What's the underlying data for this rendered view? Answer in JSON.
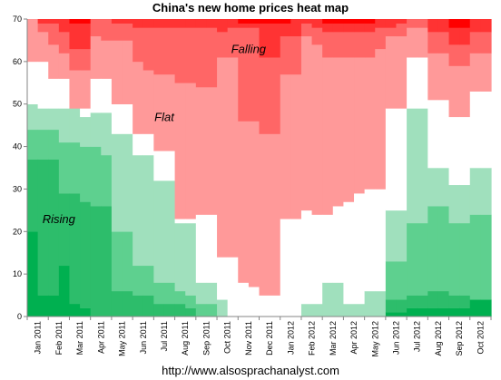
{
  "chart_data": {
    "type": "heatmap",
    "title": "China's new home prices heat map",
    "xlabel": "",
    "ylabel": "",
    "ylim": [
      0,
      70
    ],
    "yticks": [
      0,
      10,
      20,
      30,
      40,
      50,
      60,
      70
    ],
    "grid": false,
    "legend": "none",
    "categories": [
      "Jan 2011",
      "Feb 2011",
      "Mar 2011",
      "Apr 2011",
      "May 2011",
      "Jun 2011",
      "Jul 2011",
      "Aug 2011",
      "Sep 2011",
      "Oct 2011",
      "Nov 2011",
      "Dec 2011",
      "Jan 2012",
      "Feb 2012",
      "Mar 2012",
      "Apr 2012",
      "May 2012",
      "Jun 2012",
      "Jul 2012",
      "Aug 2012",
      "Sep 2012",
      "Oct 2012"
    ],
    "columns_per_month": 2,
    "colors": {
      "rise_darkest": "#00b050",
      "rise_dark": "#2dbd6b",
      "rise_mid": "#5ed08f",
      "rise_light": "#a0e0bd",
      "flat": "#ffffff",
      "fall_light": "#ff9999",
      "fall_mid": "#ff6666",
      "fall_dark": "#ff3333",
      "fall_darkest": "#ff0000"
    },
    "note": "Each column is one city-count distribution; bands stack from 0 to 70 cities (rising at bottom, flat middle, falling top). Values are cumulative upper bounds of each band.",
    "bands": [
      "rise_darkest",
      "rise_dark",
      "rise_mid",
      "rise_light",
      "flat",
      "fall_light",
      "fall_mid",
      "fall_dark",
      "fall_darkest"
    ],
    "columns": [
      [
        20,
        37,
        44,
        50,
        60,
        70,
        70,
        70,
        70
      ],
      [
        5,
        37,
        44,
        49,
        60,
        67,
        69,
        70,
        70
      ],
      [
        5,
        37,
        44,
        49,
        56,
        64,
        69,
        70,
        70
      ],
      [
        12,
        29,
        41,
        49,
        56,
        62,
        67,
        70,
        70
      ],
      [
        3,
        29,
        41,
        49,
        49,
        58,
        63,
        69,
        70
      ],
      [
        2,
        27,
        40,
        47,
        49,
        58,
        63,
        69,
        70
      ],
      [
        0,
        26,
        40,
        48,
        56,
        66,
        70,
        70,
        70
      ],
      [
        0,
        26,
        38,
        48,
        56,
        65,
        70,
        70,
        70
      ],
      [
        0,
        6,
        20,
        43,
        50,
        65,
        69,
        70,
        70
      ],
      [
        0,
        6,
        20,
        43,
        50,
        65,
        69,
        70,
        70
      ],
      [
        0,
        5,
        12,
        38,
        43,
        60,
        68,
        70,
        70
      ],
      [
        0,
        5,
        12,
        38,
        43,
        58,
        68,
        70,
        70
      ],
      [
        0,
        3,
        8,
        32,
        39,
        57,
        68,
        70,
        70
      ],
      [
        0,
        3,
        8,
        32,
        39,
        57,
        68,
        70,
        70
      ],
      [
        0,
        3,
        6,
        22,
        23,
        55,
        68,
        70,
        70
      ],
      [
        0,
        2,
        5,
        22,
        23,
        55,
        68,
        70,
        70
      ],
      [
        0,
        0,
        3,
        8,
        24,
        54,
        68,
        70,
        70
      ],
      [
        0,
        0,
        3,
        8,
        24,
        54,
        68,
        70,
        70
      ],
      [
        0,
        0,
        0,
        4,
        14,
        61,
        67,
        70,
        70
      ],
      [
        0,
        0,
        0,
        0,
        14,
        61,
        68,
        70,
        70
      ],
      [
        0,
        0,
        0,
        0,
        8,
        46,
        68,
        69,
        70
      ],
      [
        0,
        0,
        0,
        0,
        7,
        46,
        68,
        69,
        70
      ],
      [
        0,
        0,
        0,
        0,
        5,
        43,
        61,
        69,
        70
      ],
      [
        0,
        0,
        0,
        0,
        5,
        43,
        61,
        69,
        70
      ],
      [
        0,
        0,
        0,
        0,
        23,
        57,
        66,
        69,
        70
      ],
      [
        0,
        0,
        0,
        0,
        23,
        57,
        66,
        70,
        70
      ],
      [
        0,
        0,
        0,
        3,
        25,
        66,
        69,
        70,
        70
      ],
      [
        0,
        0,
        0,
        3,
        24,
        64,
        68,
        70,
        70
      ],
      [
        0,
        0,
        0,
        8,
        24,
        61,
        67,
        69,
        70
      ],
      [
        0,
        0,
        0,
        8,
        26,
        61,
        67,
        69,
        70
      ],
      [
        0,
        0,
        0,
        3,
        27,
        61,
        67,
        69,
        70
      ],
      [
        0,
        0,
        0,
        3,
        29,
        61,
        67,
        69,
        70
      ],
      [
        0,
        0,
        0,
        6,
        30,
        61,
        67,
        69,
        70
      ],
      [
        0,
        0,
        0,
        6,
        30,
        63,
        68,
        70,
        70
      ],
      [
        1,
        4,
        13,
        25,
        49,
        66,
        68,
        70,
        70
      ],
      [
        1,
        4,
        13,
        25,
        49,
        66,
        69,
        70,
        70
      ],
      [
        2,
        5,
        22,
        49,
        61,
        68,
        70,
        70,
        70
      ],
      [
        2,
        5,
        22,
        49,
        61,
        68,
        70,
        70,
        70
      ],
      [
        2,
        6,
        26,
        35,
        51,
        62,
        67,
        70,
        70
      ],
      [
        2,
        6,
        26,
        35,
        51,
        62,
        67,
        70,
        70
      ],
      [
        2,
        5,
        22,
        31,
        47,
        59,
        64,
        68,
        70
      ],
      [
        2,
        5,
        22,
        31,
        47,
        59,
        64,
        68,
        70
      ],
      [
        4,
        4,
        24,
        35,
        53,
        62,
        67,
        70,
        70
      ],
      [
        4,
        4,
        24,
        35,
        53,
        62,
        67,
        70,
        70
      ]
    ],
    "annotations": [
      {
        "text": "Falling",
        "x": "Nov 2011",
        "y": 62
      },
      {
        "text": "Flat",
        "x": "Jul 2011",
        "y": 46
      },
      {
        "text": "Rising",
        "x": "Feb 2011",
        "y": 22
      }
    ]
  },
  "footer": {
    "url": "http://www.alsosprachanalyst.com"
  }
}
